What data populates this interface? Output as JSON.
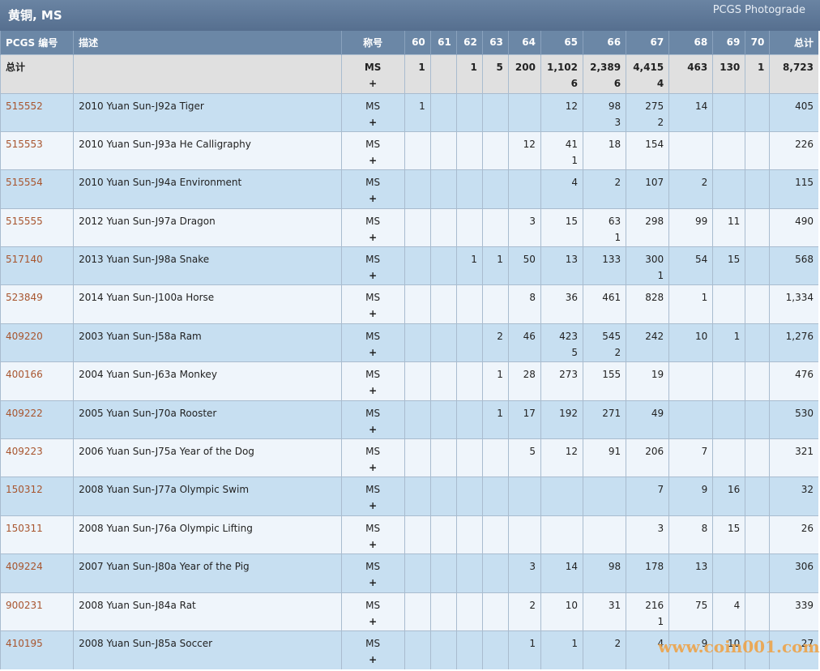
{
  "header": {
    "title": "黄铜, MS",
    "link": "PCGS Photograde"
  },
  "table": {
    "columns": [
      "PCGS 编号",
      "描述",
      "称号",
      "60",
      "61",
      "62",
      "63",
      "64",
      "65",
      "66",
      "67",
      "68",
      "69",
      "70",
      "总计"
    ],
    "total": {
      "label": "总计",
      "grade": "MS",
      "plus": "+",
      "cells": [
        [
          "1"
        ],
        null,
        [
          "1"
        ],
        [
          "5"
        ],
        [
          "200"
        ],
        [
          "1,102",
          "6"
        ],
        [
          "2,389",
          "6"
        ],
        [
          "4,415",
          "4"
        ],
        [
          "463"
        ],
        [
          "130"
        ],
        [
          "1"
        ]
      ],
      "sum": "8,723"
    },
    "rows": [
      {
        "id": "515552",
        "desc": "2010 Yuan Sun-J92a Tiger",
        "grade": "MS",
        "plus": "+",
        "cells": [
          [
            "1"
          ],
          null,
          null,
          null,
          null,
          [
            "12"
          ],
          [
            "98",
            "3"
          ],
          [
            "275",
            "2"
          ],
          [
            "14"
          ],
          null,
          null
        ],
        "sum": "405"
      },
      {
        "id": "515553",
        "desc": "2010 Yuan Sun-J93a He Calligraphy",
        "grade": "MS",
        "plus": "+",
        "cells": [
          null,
          null,
          null,
          null,
          [
            "12"
          ],
          [
            "41",
            "1"
          ],
          [
            "18"
          ],
          [
            "154"
          ],
          null,
          null,
          null
        ],
        "sum": "226"
      },
      {
        "id": "515554",
        "desc": "2010 Yuan Sun-J94a Environment",
        "grade": "MS",
        "plus": "+",
        "cells": [
          null,
          null,
          null,
          null,
          null,
          [
            "4"
          ],
          [
            "2"
          ],
          [
            "107"
          ],
          [
            "2"
          ],
          null,
          null
        ],
        "sum": "115"
      },
      {
        "id": "515555",
        "desc": "2012 Yuan Sun-J97a Dragon",
        "grade": "MS",
        "plus": "+",
        "cells": [
          null,
          null,
          null,
          null,
          [
            "3"
          ],
          [
            "15"
          ],
          [
            "63",
            "1"
          ],
          [
            "298"
          ],
          [
            "99"
          ],
          [
            "11"
          ],
          null
        ],
        "sum": "490"
      },
      {
        "id": "517140",
        "desc": "2013 Yuan Sun-J98a Snake",
        "grade": "MS",
        "plus": "+",
        "cells": [
          null,
          null,
          [
            "1"
          ],
          [
            "1"
          ],
          [
            "50"
          ],
          [
            "13"
          ],
          [
            "133"
          ],
          [
            "300",
            "1"
          ],
          [
            "54"
          ],
          [
            "15"
          ],
          null
        ],
        "sum": "568"
      },
      {
        "id": "523849",
        "desc": "2014 Yuan Sun-J100a Horse",
        "grade": "MS",
        "plus": "+",
        "cells": [
          null,
          null,
          null,
          null,
          [
            "8"
          ],
          [
            "36"
          ],
          [
            "461"
          ],
          [
            "828"
          ],
          [
            "1"
          ],
          null,
          null
        ],
        "sum": "1,334"
      },
      {
        "id": "409220",
        "desc": "2003 Yuan Sun-J58a Ram",
        "grade": "MS",
        "plus": "+",
        "cells": [
          null,
          null,
          null,
          [
            "2"
          ],
          [
            "46"
          ],
          [
            "423",
            "5"
          ],
          [
            "545",
            "2"
          ],
          [
            "242"
          ],
          [
            "10"
          ],
          [
            "1"
          ],
          null
        ],
        "sum": "1,276"
      },
      {
        "id": "400166",
        "desc": "2004 Yuan Sun-J63a Monkey",
        "grade": "MS",
        "plus": "+",
        "cells": [
          null,
          null,
          null,
          [
            "1"
          ],
          [
            "28"
          ],
          [
            "273"
          ],
          [
            "155"
          ],
          [
            "19"
          ],
          null,
          null,
          null
        ],
        "sum": "476"
      },
      {
        "id": "409222",
        "desc": "2005 Yuan Sun-J70a Rooster",
        "grade": "MS",
        "plus": "+",
        "cells": [
          null,
          null,
          null,
          [
            "1"
          ],
          [
            "17"
          ],
          [
            "192"
          ],
          [
            "271"
          ],
          [
            "49"
          ],
          null,
          null,
          null
        ],
        "sum": "530"
      },
      {
        "id": "409223",
        "desc": "2006 Yuan Sun-J75a Year of the Dog",
        "grade": "MS",
        "plus": "+",
        "cells": [
          null,
          null,
          null,
          null,
          [
            "5"
          ],
          [
            "12"
          ],
          [
            "91"
          ],
          [
            "206"
          ],
          [
            "7"
          ],
          null,
          null
        ],
        "sum": "321"
      },
      {
        "id": "150312",
        "desc": "2008 Yuan Sun-J77a Olympic Swim",
        "grade": "MS",
        "plus": "+",
        "cells": [
          null,
          null,
          null,
          null,
          null,
          null,
          null,
          [
            "7"
          ],
          [
            "9"
          ],
          [
            "16"
          ],
          null
        ],
        "sum": "32"
      },
      {
        "id": "150311",
        "desc": "2008 Yuan Sun-J76a Olympic Lifting",
        "grade": "MS",
        "plus": "+",
        "cells": [
          null,
          null,
          null,
          null,
          null,
          null,
          null,
          [
            "3"
          ],
          [
            "8"
          ],
          [
            "15"
          ],
          null
        ],
        "sum": "26"
      },
      {
        "id": "409224",
        "desc": "2007 Yuan Sun-J80a Year of the Pig",
        "grade": "MS",
        "plus": "+",
        "cells": [
          null,
          null,
          null,
          null,
          [
            "3"
          ],
          [
            "14"
          ],
          [
            "98"
          ],
          [
            "178"
          ],
          [
            "13"
          ],
          null,
          null
        ],
        "sum": "306"
      },
      {
        "id": "900231",
        "desc": "2008 Yuan Sun-J84a Rat",
        "grade": "MS",
        "plus": "+",
        "cells": [
          null,
          null,
          null,
          null,
          [
            "2"
          ],
          [
            "10"
          ],
          [
            "31"
          ],
          [
            "216",
            "1"
          ],
          [
            "75"
          ],
          [
            "4"
          ],
          null
        ],
        "sum": "339"
      },
      {
        "id": "410195",
        "desc": "2008 Yuan Sun-J85a Soccer",
        "grade": "MS",
        "plus": "+",
        "cells": [
          null,
          null,
          null,
          null,
          [
            "1"
          ],
          [
            "1"
          ],
          [
            "2"
          ],
          [
            "4"
          ],
          [
            "9"
          ],
          [
            "10"
          ],
          null
        ],
        "sum": "27"
      }
    ]
  },
  "watermark": "www.coin001.com"
}
